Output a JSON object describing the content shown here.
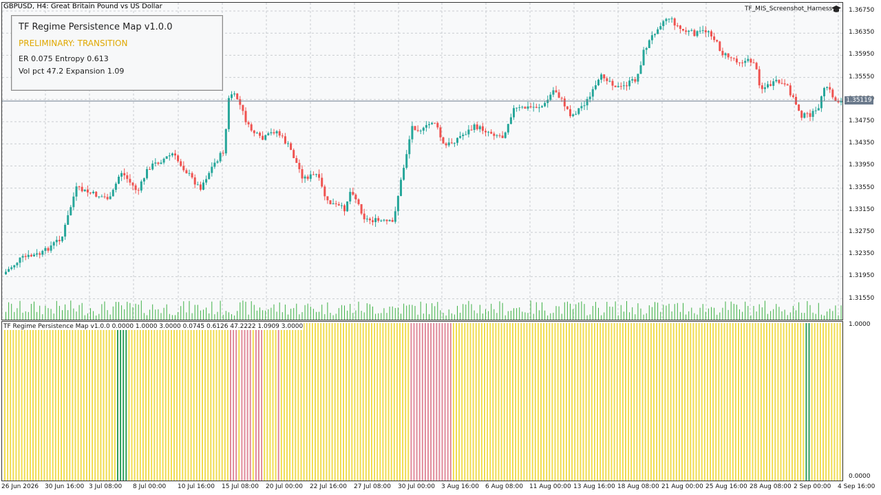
{
  "header": {
    "symbol": "GBPUSD, H4:",
    "description": "Great Britain Pound vs US Dollar",
    "expert_label": "TF_MIS_Screenshot_Harness",
    "expert_icon": "graduation-cap-icon"
  },
  "panel": {
    "title": "TF Regime Persistence Map  v1.0.0",
    "state": "PRELIMINARY: TRANSITION",
    "line3": "ER 0.075   Entropy 0.613",
    "line4": "Vol pct 47.2   Expansion 1.09",
    "state_color": "#e0a800"
  },
  "price_axis": {
    "labels": [
      "1.36750",
      "1.36350",
      "1.35950",
      "1.35550",
      "1.35150",
      "1.34750",
      "1.34350",
      "1.33950",
      "1.33550",
      "1.33150",
      "1.32750",
      "1.32350",
      "1.31950",
      "1.31550"
    ],
    "current_price": "1.35119"
  },
  "time_axis": {
    "labels": [
      "26 Jun 2026",
      "30 Jun 16:00",
      "3 Jul 08:00",
      "8 Jul 00:00",
      "10 Jul 16:00",
      "15 Jul 08:00",
      "20 Jul 00:00",
      "22 Jul 16:00",
      "27 Jul 08:00",
      "30 Jul 00:00",
      "3 Aug 16:00",
      "6 Aug 08:00",
      "11 Aug 00:00",
      "13 Aug 16:00",
      "18 Aug 08:00",
      "21 Aug 00:00",
      "25 Aug 16:00",
      "28 Aug 08:00",
      "2 Sep 00:00",
      "4 Sep 16:00"
    ]
  },
  "subwindow": {
    "title": "TF Regime Persistence Map v1.0.0 0.0000 1.0000 3.0000 0.0745 0.6126 47.2222 1.0909 3.0000",
    "max_label": "1.0000",
    "min_label": "0.0000",
    "colors": {
      "transition": "#f0dc50",
      "trend": "#2e9e5b",
      "range": "#e08a9a"
    }
  },
  "colors": {
    "bull": "#26a69a",
    "bear": "#ef5350",
    "volume": "#3cb043",
    "grid": "#c8ccd0",
    "current_line": "#6b7a8c"
  }
}
